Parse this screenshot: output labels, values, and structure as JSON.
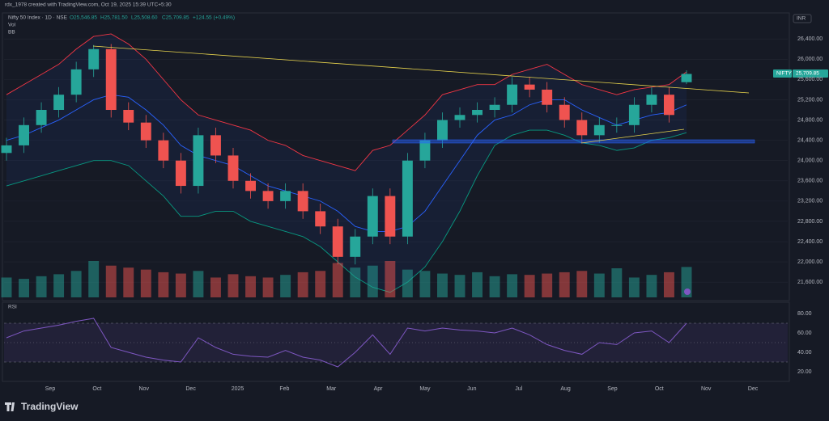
{
  "header": {
    "credit": "rdx_1978 created with TradingView.com, Oct 19, 2025 15:39 UTC+5:30",
    "symbol": "Nifty 50 Index · 1D · NSE",
    "open": "O25,546.85",
    "high": "H25,781.50",
    "low": "L25,508.60",
    "close": "C25,709.85",
    "change": "+124.55 (+0.49%)",
    "vol": "Vol",
    "bb": "BB",
    "rsi": "RSI",
    "currency": "INR",
    "ticker": "NIFTY",
    "last": "25,709.85",
    "logo": "TradingView"
  },
  "chart_data": {
    "type": "candlestick",
    "xlabels": [
      "Sep",
      "Oct",
      "Nov",
      "Dec",
      "2025",
      "Feb",
      "Mar",
      "Apr",
      "May",
      "Jun",
      "Jul",
      "Aug",
      "Sep",
      "Oct",
      "Nov",
      "Dec"
    ],
    "ylim": [
      21300,
      26850
    ],
    "yticks": [
      {
        "value": 26400,
        "label": "26,400.00"
      },
      {
        "value": 26000,
        "label": "26,000.00"
      },
      {
        "value": 25600,
        "label": "25,600.00"
      },
      {
        "value": 25200,
        "label": "25,200.00"
      },
      {
        "value": 24800,
        "label": "24,800.00"
      },
      {
        "value": 24400,
        "label": "24,400.00"
      },
      {
        "value": 24000,
        "label": "24,000.00"
      },
      {
        "value": 23600,
        "label": "23,600.00"
      },
      {
        "value": 23200,
        "label": "23,200.00"
      },
      {
        "value": 22800,
        "label": "22,800.00"
      },
      {
        "value": 22400,
        "label": "22,400.00"
      },
      {
        "value": 22000,
        "label": "22,000.00"
      },
      {
        "value": 21600,
        "label": "21,600.00"
      }
    ],
    "open": [
      24150,
      24300,
      24700,
      25000,
      25300,
      25800,
      26200,
      25000,
      24750,
      24400,
      24000,
      23500,
      24500,
      24100,
      23600,
      23400,
      23200,
      23400,
      23000,
      22700,
      22100,
      22500,
      23300,
      22500,
      24000,
      24400,
      24800,
      24900,
      25000,
      25100,
      25500,
      25400,
      25100,
      24800,
      24500,
      24700,
      24700,
      25100,
      25300,
      25546.85
    ],
    "high": [
      24450,
      24850,
      25150,
      25450,
      25950,
      26280,
      26300,
      25150,
      24900,
      24550,
      24150,
      24650,
      24650,
      24250,
      23750,
      23550,
      23550,
      23550,
      23150,
      22850,
      22650,
      23450,
      23450,
      24150,
      24550,
      24950,
      25050,
      25150,
      25250,
      25650,
      25650,
      25550,
      25250,
      24950,
      24850,
      24850,
      25250,
      25450,
      25450,
      25781.5
    ],
    "low": [
      24000,
      24150,
      24550,
      24850,
      25150,
      25650,
      24850,
      24600,
      24250,
      23850,
      23350,
      23350,
      23950,
      23450,
      23250,
      23050,
      23050,
      22850,
      22550,
      21950,
      21950,
      22350,
      22350,
      22350,
      23850,
      24250,
      24650,
      24750,
      24850,
      24950,
      25250,
      24950,
      24650,
      24350,
      24350,
      24550,
      24550,
      24950,
      24750,
      25508.6
    ],
    "close": [
      24300,
      24700,
      25000,
      25300,
      25800,
      26200,
      25000,
      24750,
      24400,
      24000,
      23500,
      24500,
      24100,
      23600,
      23400,
      23200,
      23400,
      23000,
      22700,
      22100,
      22500,
      23300,
      22500,
      24000,
      24400,
      24800,
      24900,
      25000,
      25100,
      25500,
      25400,
      25100,
      24800,
      24500,
      24700,
      24700,
      25100,
      25300,
      24900,
      25709.85
    ],
    "volume": [
      30,
      28,
      32,
      35,
      40,
      55,
      48,
      45,
      42,
      38,
      36,
      40,
      30,
      35,
      32,
      30,
      34,
      38,
      40,
      52,
      45,
      48,
      55,
      42,
      40,
      36,
      34,
      38,
      32,
      35,
      34,
      36,
      38,
      40,
      36,
      44,
      30,
      34,
      38,
      46
    ],
    "bb_upper": [
      25300,
      25500,
      25700,
      25900,
      26200,
      26450,
      26500,
      26300,
      26000,
      25600,
      25200,
      24900,
      24800,
      24700,
      24600,
      24400,
      24300,
      24100,
      24000,
      23900,
      23800,
      24200,
      24300,
      24600,
      24900,
      25300,
      25400,
      25500,
      25500,
      25700,
      25800,
      25900,
      25700,
      25500,
      25400,
      25300,
      25400,
      25450,
      25500,
      25750
    ],
    "bb_basis": [
      24400,
      24500,
      24650,
      24800,
      25000,
      25200,
      25300,
      25250,
      25000,
      24700,
      24300,
      24100,
      24000,
      23900,
      23700,
      23500,
      23400,
      23300,
      23200,
      23000,
      22700,
      22600,
      22600,
      22700,
      23000,
      23500,
      24000,
      24500,
      24800,
      24900,
      25100,
      25200,
      25200,
      25000,
      24850,
      24700,
      24800,
      24900,
      24950,
      25100
    ],
    "bb_lower": [
      23500,
      23600,
      23700,
      23800,
      23900,
      24000,
      24000,
      23900,
      23600,
      23300,
      22900,
      22900,
      23000,
      23000,
      22800,
      22700,
      22600,
      22500,
      22300,
      22000,
      21700,
      21500,
      21400,
      21600,
      21900,
      22400,
      23000,
      23700,
      24300,
      24500,
      24600,
      24600,
      24500,
      24350,
      24300,
      24200,
      24250,
      24400,
      24450,
      24550
    ],
    "rsi": [
      55,
      62,
      65,
      68,
      72,
      75,
      45,
      40,
      35,
      32,
      30,
      55,
      45,
      38,
      36,
      35,
      42,
      35,
      32,
      25,
      40,
      58,
      38,
      65,
      62,
      65,
      63,
      62,
      60,
      65,
      58,
      48,
      42,
      38,
      50,
      48,
      60,
      62,
      50,
      70
    ],
    "rsi_ylim": [
      11.7,
      88.3
    ],
    "rsi_yticks": [
      {
        "value": 80,
        "label": "80.00"
      },
      {
        "value": 60,
        "label": "60.00"
      },
      {
        "value": 40,
        "label": "40.00"
      },
      {
        "value": 20,
        "label": "20.00"
      }
    ],
    "up_color": "#26a69a",
    "down_color": "#ef5350"
  }
}
